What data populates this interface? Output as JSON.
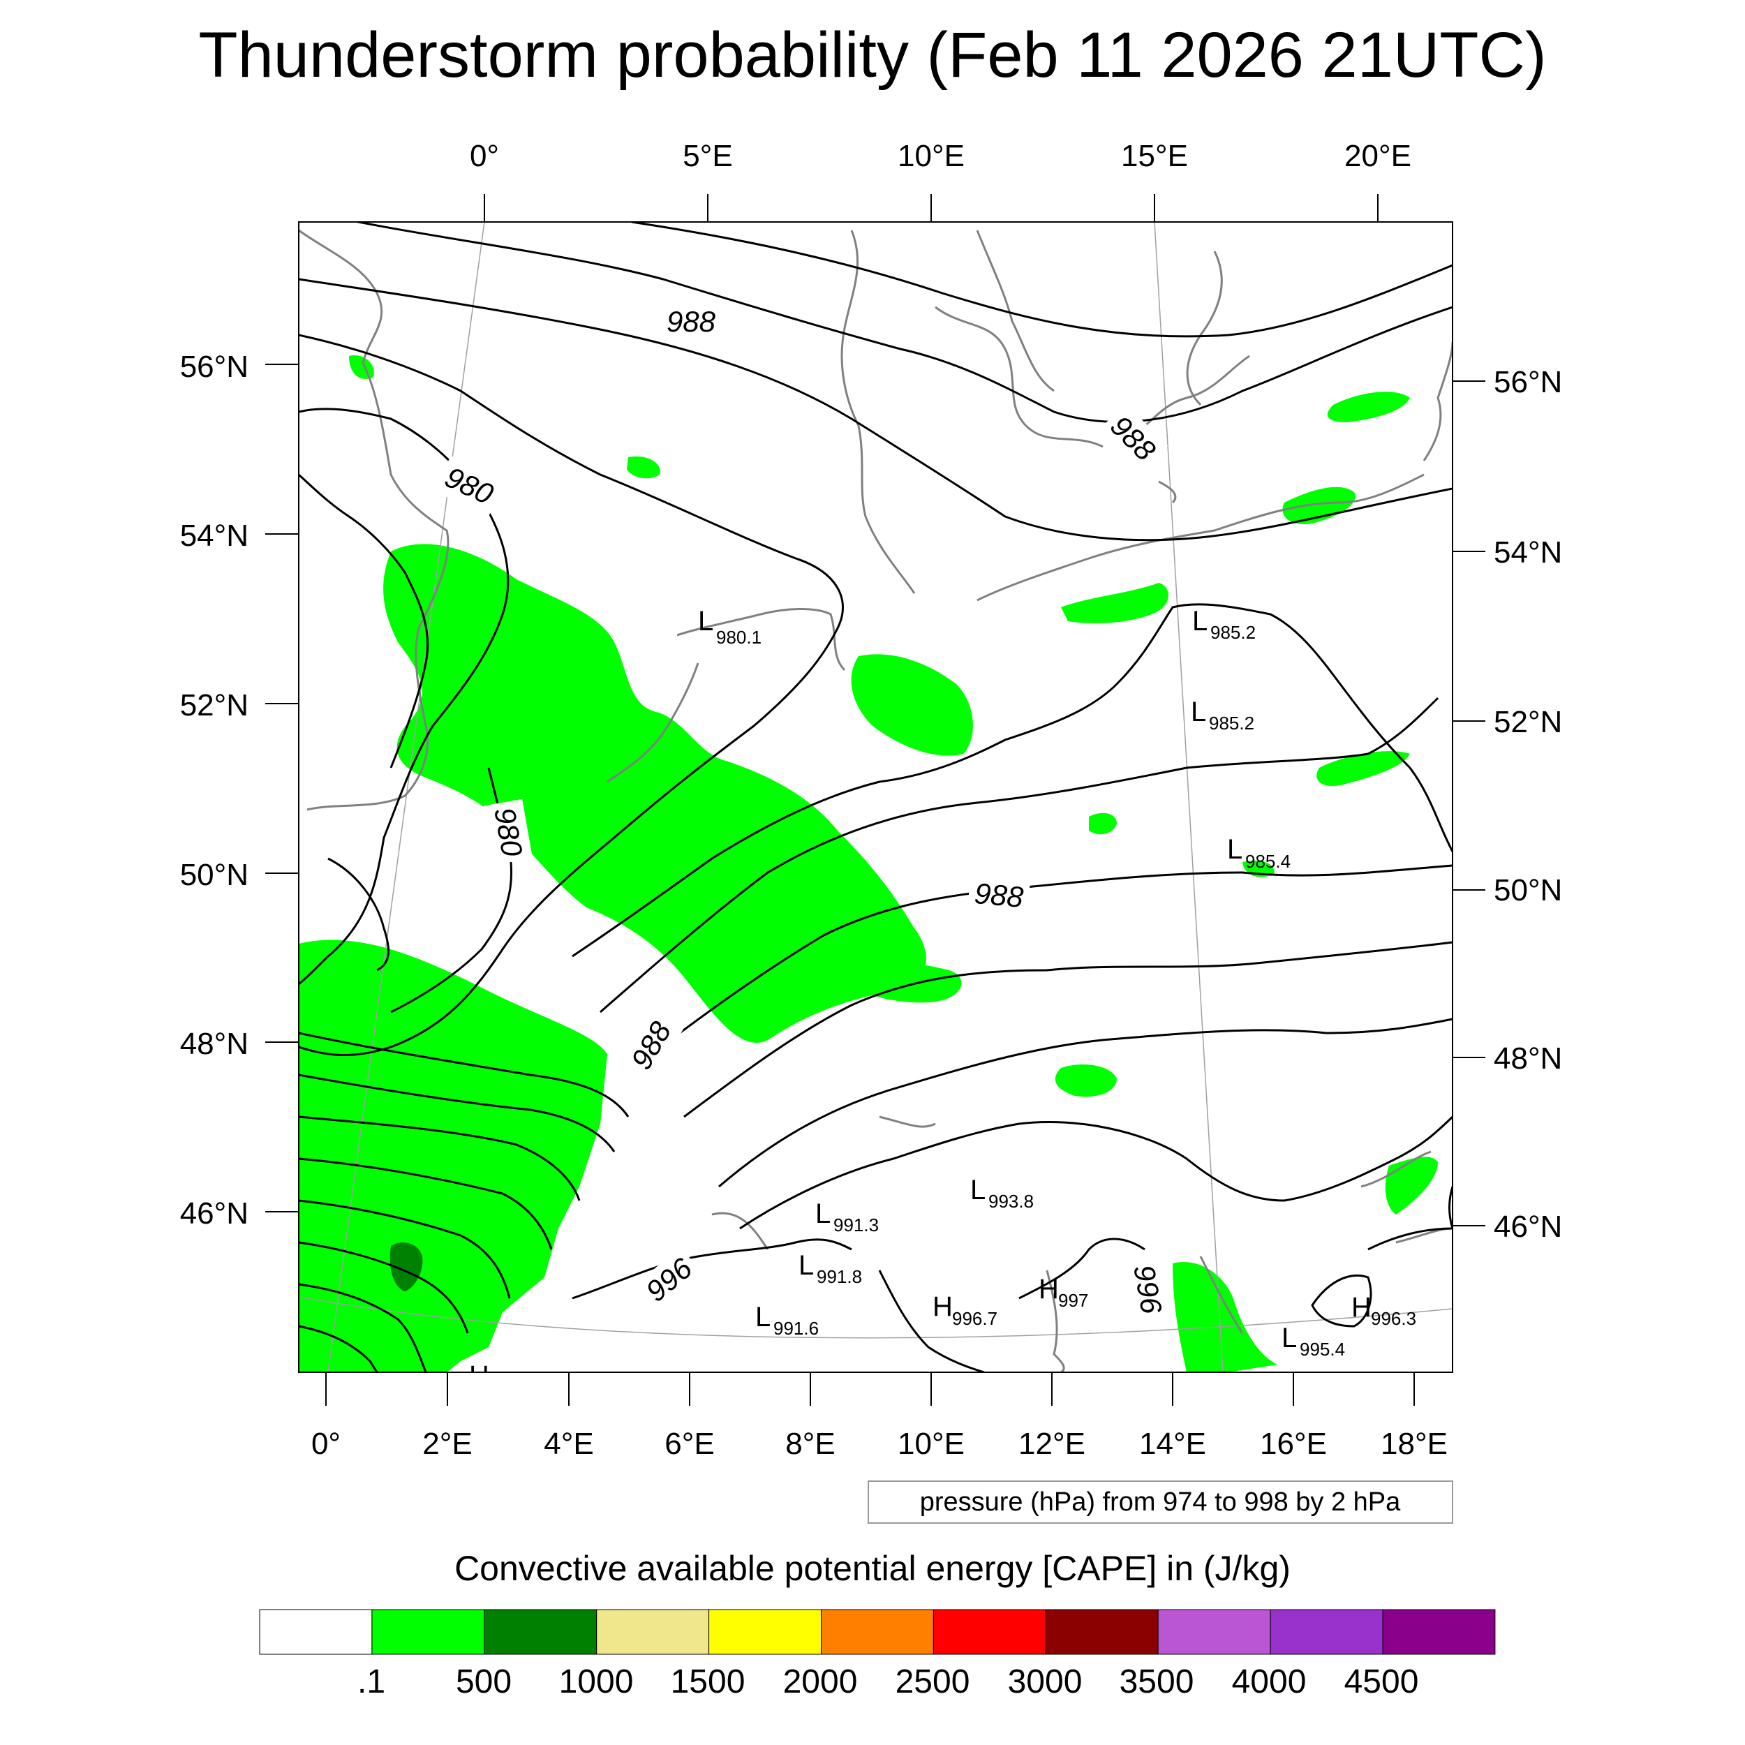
{
  "title": "Thunderstorm probability (Feb 11 2026 21UTC)",
  "top_lon_labels": [
    "0°",
    "5°E",
    "10°E",
    "15°E",
    "20°E"
  ],
  "bottom_lon_labels": [
    "0°",
    "2°E",
    "4°E",
    "6°E",
    "8°E",
    "10°E",
    "12°E",
    "14°E",
    "16°E",
    "18°E"
  ],
  "left_lat_labels": [
    "56°N",
    "54°N",
    "52°N",
    "50°N",
    "48°N",
    "46°N"
  ],
  "right_lat_labels": [
    "56°N",
    "54°N",
    "52°N",
    "50°N",
    "48°N",
    "46°N"
  ],
  "contour_info": "pressure (hPa) from 974 to 998 by 2 hPa",
  "isobar_labels": [
    "988",
    "980",
    "988",
    "980",
    "988",
    "988",
    "996",
    "996"
  ],
  "pressure_centers": [
    {
      "kind": "L",
      "value": "980.1"
    },
    {
      "kind": "L",
      "value": "985.2"
    },
    {
      "kind": "L",
      "value": "985.2"
    },
    {
      "kind": "L",
      "value": "985.4"
    },
    {
      "kind": "L",
      "value": "993.8"
    },
    {
      "kind": "L",
      "value": "991.3"
    },
    {
      "kind": "L",
      "value": "991.8"
    },
    {
      "kind": "L",
      "value": "991.6"
    },
    {
      "kind": "H",
      "value": "996.7"
    },
    {
      "kind": "H",
      "value": "997"
    },
    {
      "kind": "H",
      "value": "996.3"
    },
    {
      "kind": "L",
      "value": "995.4"
    },
    {
      "kind": "H",
      "value": ""
    }
  ],
  "colorbar": {
    "title": "Convective available potential energy [CAPE] in (J/kg)",
    "colors": [
      "#ffffff",
      "#00ff00",
      "#008000",
      "#f0e68c",
      "#ffff00",
      "#ff8000",
      "#ff0000",
      "#8b0000",
      "#ba55d3",
      "#9932cc",
      "#8b008b"
    ],
    "labels": [
      ".1",
      "500",
      "1000",
      "1500",
      "2000",
      "2500",
      "3000",
      "3500",
      "4000",
      "4500"
    ]
  },
  "legend_colors": {
    "cape_light": "#00ff00",
    "cape_dark": "#008000",
    "coast": "#808080",
    "isobar": "#000000"
  }
}
